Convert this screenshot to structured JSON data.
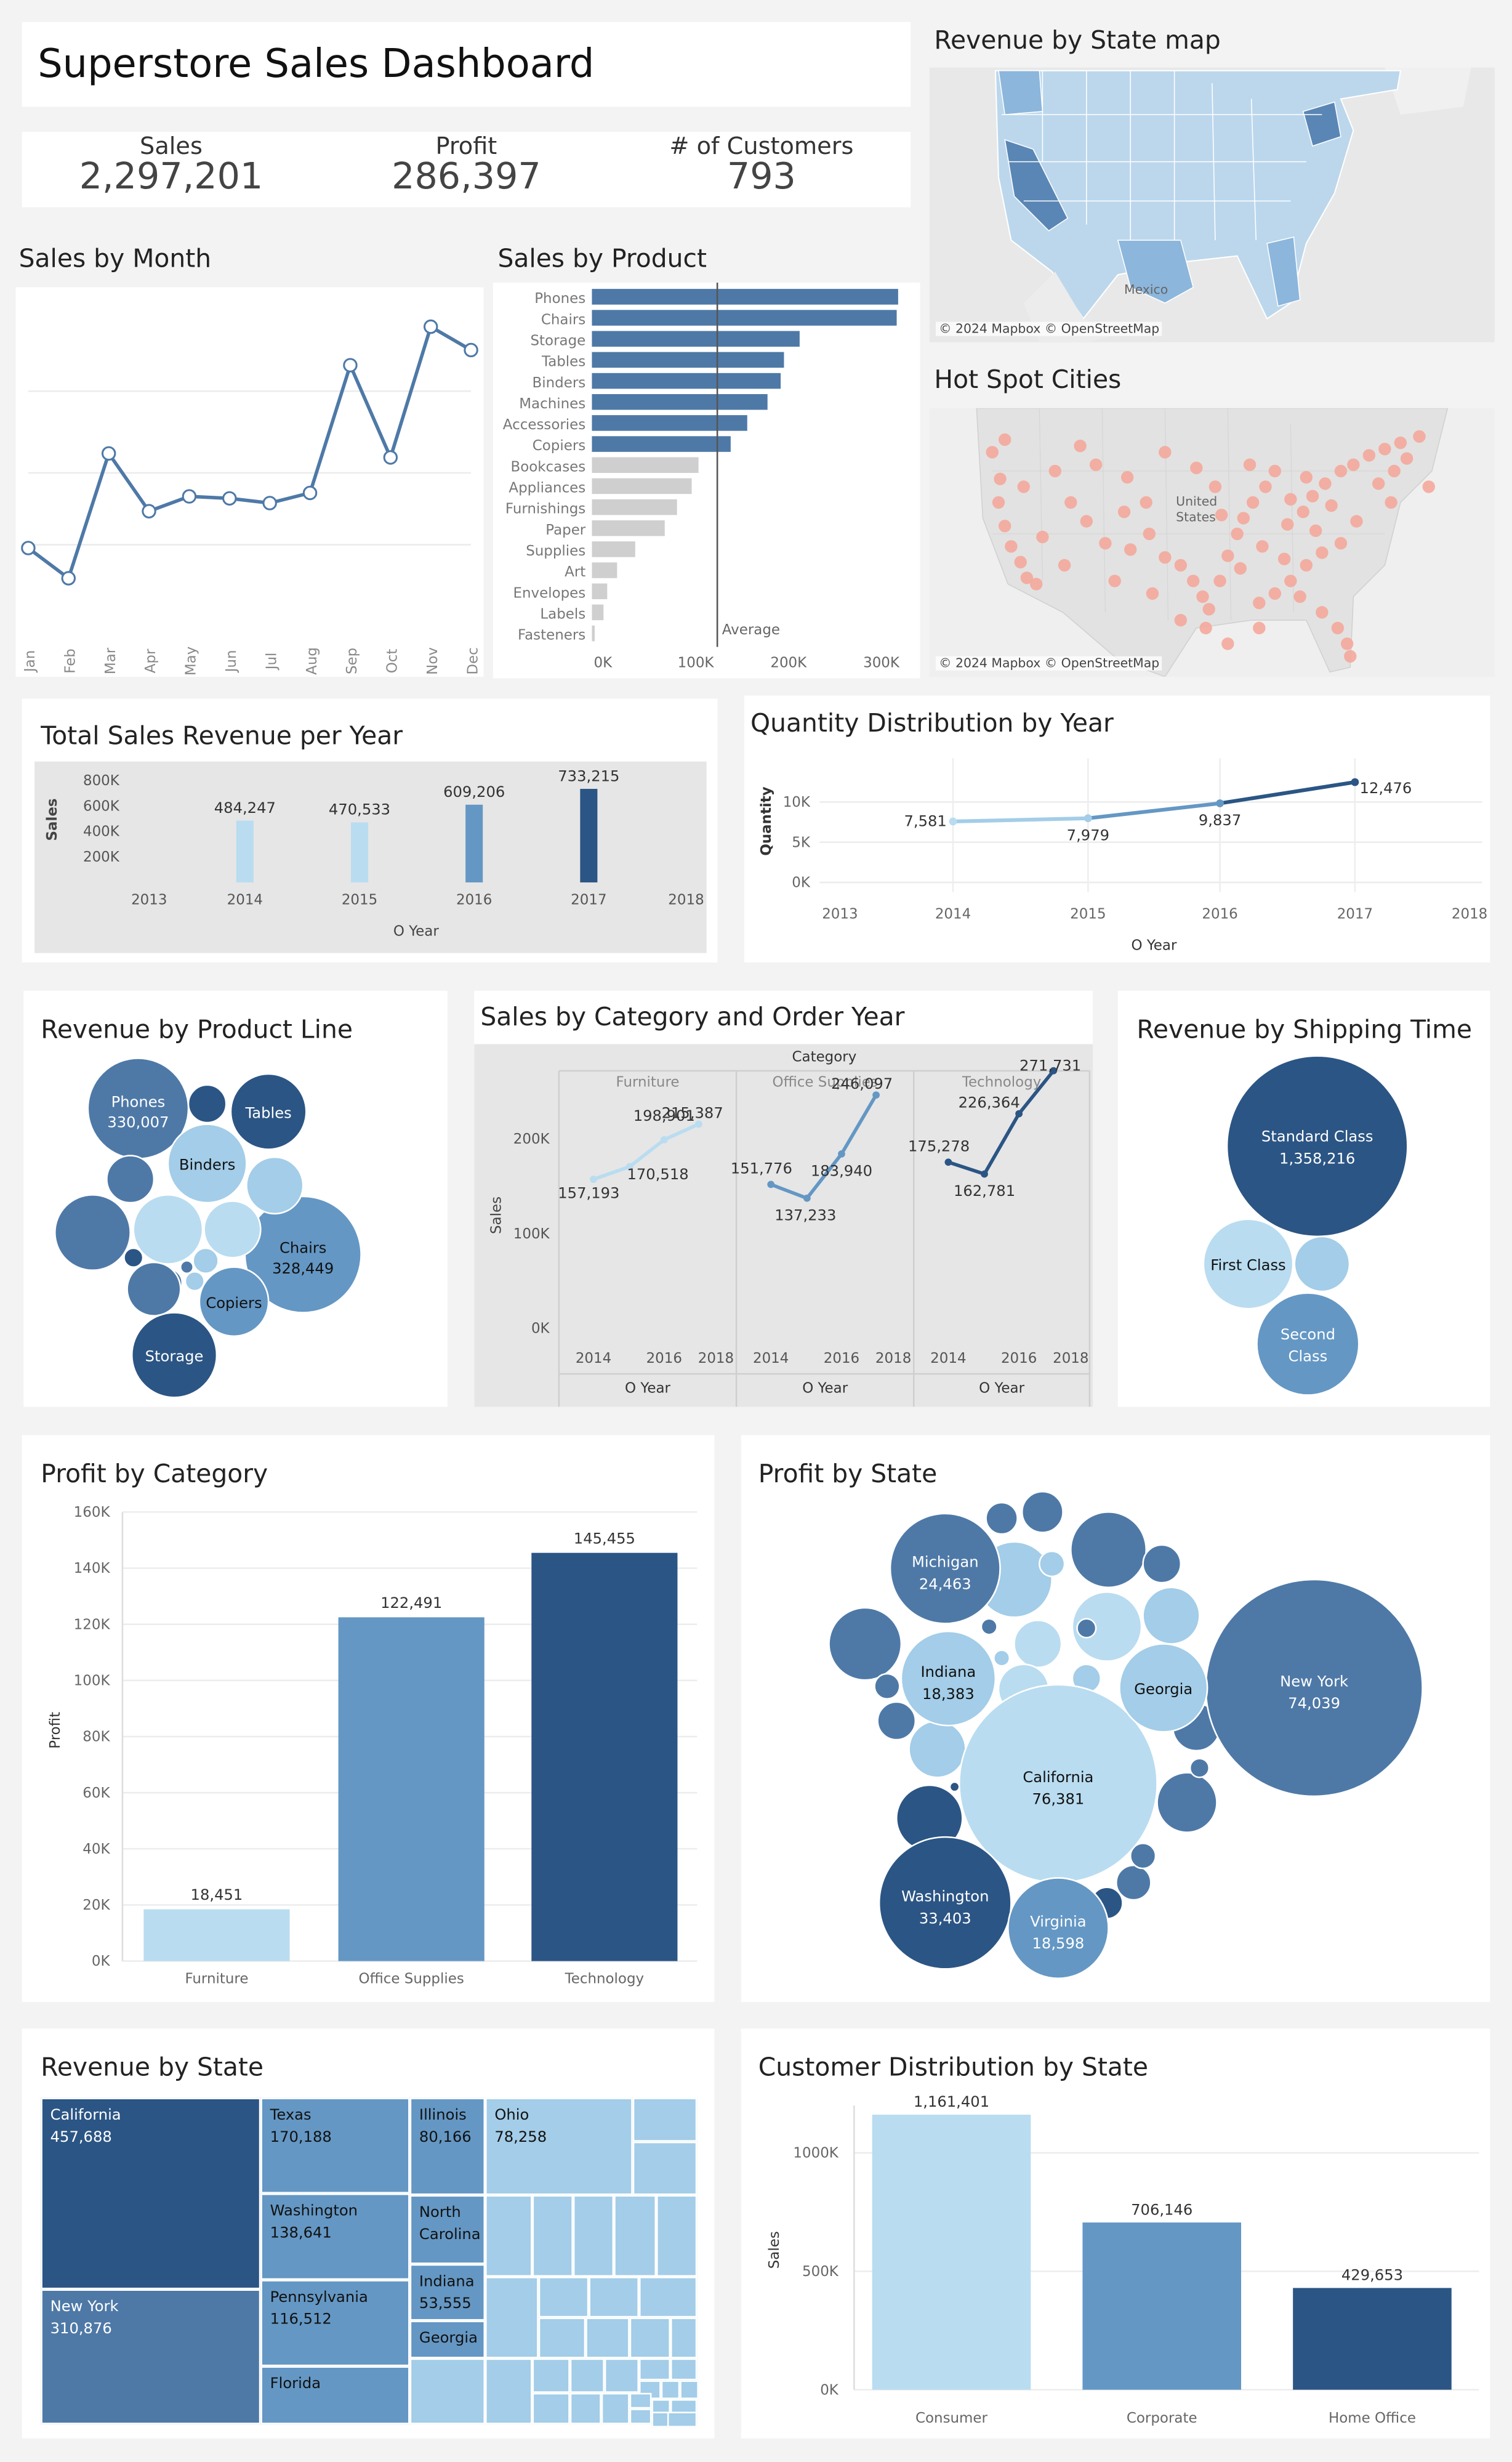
{
  "dashboard": {
    "title": "Superstore Sales Dashboard"
  },
  "kpis": [
    {
      "label": "Sales",
      "value": "2,297,201"
    },
    {
      "label": "Profit",
      "value": "286,397"
    },
    {
      "label": "# of Customers",
      "value": "793"
    }
  ],
  "colors": {
    "background": "#f3f3f3",
    "panel": "#ffffff",
    "shade": "#e6e6e6",
    "light": "#b9dcf0",
    "mid_light": "#a3cde8",
    "mid": "#6497c4",
    "mid_dark": "#4e79a7",
    "dark": "#2b5584",
    "grey_bar": "#cfcfcf",
    "line": "#4e79a7",
    "hotspot": "#f4a99b"
  },
  "maps": {
    "revenue_map": {
      "title": "Revenue by State map",
      "attribution": "© 2024 Mapbox © OpenStreetMap",
      "label_mexico": "Mexico"
    },
    "hotspot_map": {
      "title": "Hot Spot Cities",
      "attribution": "© 2024 Mapbox © OpenStreetMap",
      "label_us": "United States"
    }
  },
  "chart_data": [
    {
      "id": "sales_by_month",
      "type": "line",
      "title": "Sales by Month",
      "categories": [
        "Jan",
        "Feb",
        "Mar",
        "Apr",
        "May",
        "Jun",
        "Jul",
        "Aug",
        "Sep",
        "Oct",
        "Nov",
        "Dec"
      ],
      "values": [
        94925,
        59751,
        205005,
        137762,
        155028,
        152718,
        147238,
        159044,
        307650,
        200323,
        352461,
        325294
      ],
      "ylim": [
        0,
        380000
      ],
      "grid": true
    },
    {
      "id": "sales_by_product",
      "type": "bar",
      "orientation": "horizontal",
      "title": "Sales by Product",
      "categories": [
        "Phones",
        "Chairs",
        "Storage",
        "Tables",
        "Binders",
        "Machines",
        "Accessories",
        "Copiers",
        "Bookcases",
        "Appliances",
        "Furnishings",
        "Paper",
        "Supplies",
        "Art",
        "Envelopes",
        "Labels",
        "Fasteners"
      ],
      "values": [
        330007,
        328449,
        223844,
        206966,
        203413,
        189239,
        167380,
        149528,
        114880,
        107532,
        91705,
        78479,
        46674,
        27119,
        16476,
        12486,
        3024
      ],
      "highlighted_count": 8,
      "reference_line": {
        "label": "Average",
        "value": 135130
      },
      "xticks": [
        "0K",
        "100K",
        "200K",
        "300K"
      ],
      "xlim": [
        0,
        335000
      ]
    },
    {
      "id": "total_sales_per_year",
      "type": "bar",
      "title": "Total Sales Revenue per Year",
      "xlabel": "O Year",
      "ylabel": "Sales",
      "x": [
        2014,
        2015,
        2016,
        2017
      ],
      "values": [
        484247,
        470533,
        609206,
        733215
      ],
      "labels": [
        "484,247",
        "470,533",
        "609,206",
        "733,215"
      ],
      "xticks": [
        "2013",
        "2014",
        "2015",
        "2016",
        "2017",
        "2018"
      ],
      "yticks": [
        "200K",
        "400K",
        "600K",
        "800K"
      ],
      "ylim": [
        0,
        800000
      ]
    },
    {
      "id": "quantity_by_year",
      "type": "line",
      "title": "Quantity Distribution by Year",
      "xlabel": "O Year",
      "ylabel": "Quantity",
      "x": [
        2014,
        2015,
        2016,
        2017
      ],
      "values": [
        7581,
        7979,
        9837,
        12476
      ],
      "labels": [
        "7,581",
        "7,979",
        "9,837",
        "12,476"
      ],
      "xticks": [
        "2013",
        "2014",
        "2015",
        "2016",
        "2017",
        "2018"
      ],
      "yticks": [
        "0K",
        "5K",
        "10K"
      ],
      "ylim": [
        0,
        12500
      ]
    },
    {
      "id": "revenue_by_product_line",
      "type": "bubble",
      "title": "Revenue by Product Line",
      "bubbles": [
        {
          "name": "Phones",
          "value": "330,007"
        },
        {
          "name": "Tables",
          "value": ""
        },
        {
          "name": "Binders",
          "value": ""
        },
        {
          "name": "Chairs",
          "value": "328,449"
        },
        {
          "name": "Copiers",
          "value": ""
        },
        {
          "name": "Storage",
          "value": ""
        }
      ]
    },
    {
      "id": "sales_by_category_year",
      "type": "line",
      "title": "Sales by Category and Order Year",
      "header": "Category",
      "xlabel": "O Year",
      "ylabel": "Sales",
      "xticks": [
        "2014",
        "2016",
        "2018"
      ],
      "yticks": [
        "0K",
        "100K",
        "200K"
      ],
      "ylim": [
        0,
        265000
      ],
      "x": [
        2014,
        2015,
        2016,
        2017
      ],
      "series": [
        {
          "name": "Furniture",
          "values": [
            157193,
            170518,
            198901,
            215387
          ],
          "labels": [
            "157,193",
            "170,518",
            "198,901",
            "215,387"
          ]
        },
        {
          "name": "Office Supplies",
          "values": [
            151776,
            137233,
            183940,
            246097
          ],
          "labels": [
            "151,776",
            "137,233",
            "183,940",
            "246,097"
          ]
        },
        {
          "name": "Technology",
          "values": [
            175278,
            162781,
            226364,
            271731
          ],
          "labels": [
            "175,278",
            "162,781",
            "226,364",
            "271,731"
          ]
        }
      ]
    },
    {
      "id": "revenue_by_shipping_time",
      "type": "bubble",
      "title": "Revenue by Shipping Time",
      "bubbles": [
        {
          "name": "Standard Class",
          "value": "1,358,216"
        },
        {
          "name": "First Class",
          "value": ""
        },
        {
          "name": "Second Class",
          "value": ""
        }
      ]
    },
    {
      "id": "profit_by_category",
      "type": "bar",
      "title": "Profit by Category",
      "ylabel": "Profit",
      "categories": [
        "Furniture",
        "Office Supplies",
        "Technology"
      ],
      "values": [
        18451,
        122491,
        145455
      ],
      "labels": [
        "18,451",
        "122,491",
        "145,455"
      ],
      "yticks": [
        "0K",
        "20K",
        "40K",
        "60K",
        "80K",
        "100K",
        "120K",
        "140K",
        "160K"
      ],
      "ylim": [
        0,
        160000
      ]
    },
    {
      "id": "profit_by_state",
      "type": "bubble",
      "title": "Profit by State",
      "bubbles": [
        {
          "name": "California",
          "value": "76,381"
        },
        {
          "name": "New York",
          "value": "74,039"
        },
        {
          "name": "Washington",
          "value": "33,403"
        },
        {
          "name": "Michigan",
          "value": "24,463"
        },
        {
          "name": "Virginia",
          "value": "18,598"
        },
        {
          "name": "Indiana",
          "value": "18,383"
        },
        {
          "name": "Georgia",
          "value": ""
        }
      ]
    },
    {
      "id": "revenue_by_state",
      "type": "treemap",
      "title": "Revenue by State",
      "items": [
        {
          "name": "California",
          "value": "457,688"
        },
        {
          "name": "New York",
          "value": "310,876"
        },
        {
          "name": "Texas",
          "value": "170,188"
        },
        {
          "name": "Washington",
          "value": "138,641"
        },
        {
          "name": "Pennsylvania",
          "value": "116,512"
        },
        {
          "name": "Florida",
          "value": ""
        },
        {
          "name": "Illinois",
          "value": "80,166"
        },
        {
          "name": "Ohio",
          "value": "78,258"
        },
        {
          "name": "North Carolina",
          "value": ""
        },
        {
          "name": "Indiana",
          "value": "53,555"
        },
        {
          "name": "Georgia",
          "value": ""
        }
      ]
    },
    {
      "id": "customer_distribution",
      "type": "bar",
      "title": "Customer Distribution by State",
      "ylabel": "Sales",
      "categories": [
        "Consumer",
        "Corporate",
        "Home Office"
      ],
      "values": [
        1161401,
        706146,
        429653
      ],
      "labels": [
        "1,161,401",
        "706,146",
        "429,653"
      ],
      "yticks": [
        "0K",
        "500K",
        "1000K"
      ],
      "ylim": [
        0,
        1200000
      ]
    }
  ]
}
